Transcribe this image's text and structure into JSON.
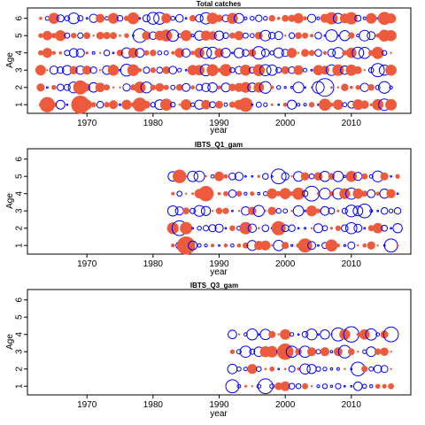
{
  "figure": {
    "type": "residual-bubble-plot",
    "positive_color": "#0000ff",
    "negative_color": "#ee5a3c",
    "legend": "none",
    "grid": false
  },
  "chart_data": [
    {
      "type": "scatter",
      "title": "Total catches",
      "xlabel": "year",
      "ylabel": "Age",
      "xlim": [
        1961,
        2019
      ],
      "ylim": [
        0.5,
        6.6
      ],
      "x_ticks": [
        1970,
        1980,
        1990,
        2000,
        2010
      ],
      "y_ticks": [
        1,
        2,
        3,
        4,
        5,
        6
      ],
      "years": [
        1963,
        2016
      ],
      "ages": [
        1,
        6
      ],
      "seed": 11,
      "highlights": [
        {
          "age": 1,
          "year": 1969,
          "value": -1.0
        },
        {
          "age": 1,
          "year": 1964,
          "value": -0.7
        },
        {
          "age": 1,
          "year": 1978,
          "value": -0.6
        },
        {
          "age": 2,
          "year": 2006,
          "value": 1.0
        },
        {
          "age": 2,
          "year": 1969,
          "value": -0.6
        },
        {
          "age": 5,
          "year": 1978,
          "value": 0.6
        },
        {
          "age": 4,
          "year": 1996,
          "value": 0.5
        },
        {
          "age": 6,
          "year": 2015,
          "value": -0.5
        },
        {
          "age": 1,
          "year": 1994,
          "value": -0.6
        },
        {
          "age": 3,
          "year": 2014,
          "value": 0.55
        }
      ]
    },
    {
      "type": "scatter",
      "title": "IBTS_Q1_gam",
      "xlabel": "year",
      "ylabel": "Age",
      "xlim": [
        1961,
        2019
      ],
      "ylim": [
        0.5,
        6.6
      ],
      "x_ticks": [
        1970,
        1980,
        1990,
        2000,
        2010
      ],
      "y_ticks": [
        1,
        2,
        3,
        4,
        5,
        6
      ],
      "years": [
        1983,
        2017
      ],
      "ages": [
        1,
        5
      ],
      "seed": 23,
      "highlights": [
        {
          "age": 1,
          "year": 1985,
          "value": -1.0
        },
        {
          "age": 2,
          "year": 1984,
          "value": 0.7
        },
        {
          "age": 4,
          "year": 1988,
          "value": -0.7
        },
        {
          "age": 4,
          "year": 2004,
          "value": 0.7
        },
        {
          "age": 5,
          "year": 1999,
          "value": 0.7
        },
        {
          "age": 2,
          "year": 1999,
          "value": -0.6
        },
        {
          "age": 1,
          "year": 2003,
          "value": -0.6
        },
        {
          "age": 3,
          "year": 2012,
          "value": 0.6
        },
        {
          "age": 5,
          "year": 1984,
          "value": -0.55
        },
        {
          "age": 1,
          "year": 2016,
          "value": 0.55
        }
      ]
    },
    {
      "type": "scatter",
      "title": "IBTS_Q3_gam",
      "xlabel": "year",
      "ylabel": "Age",
      "xlim": [
        1961,
        2019
      ],
      "ylim": [
        0.5,
        6.6
      ],
      "x_ticks": [
        1970,
        1980,
        1990,
        2000,
        2010
      ],
      "y_ticks": [
        1,
        2,
        3,
        4,
        5,
        6
      ],
      "years": [
        1992,
        2016
      ],
      "ages": [
        1,
        4
      ],
      "seed": 37,
      "highlights": [
        {
          "age": 3,
          "year": 2000,
          "value": -0.8
        },
        {
          "age": 4,
          "year": 2010,
          "value": 0.75
        },
        {
          "age": 4,
          "year": 2016,
          "value": 0.7
        },
        {
          "age": 1,
          "year": 1997,
          "value": 0.7
        },
        {
          "age": 1,
          "year": 1992,
          "value": 0.55
        },
        {
          "age": 2,
          "year": 2011,
          "value": 0.6
        },
        {
          "age": 4,
          "year": 2008,
          "value": 0.55
        },
        {
          "age": 3,
          "year": 2009,
          "value": 0.5
        }
      ]
    }
  ]
}
